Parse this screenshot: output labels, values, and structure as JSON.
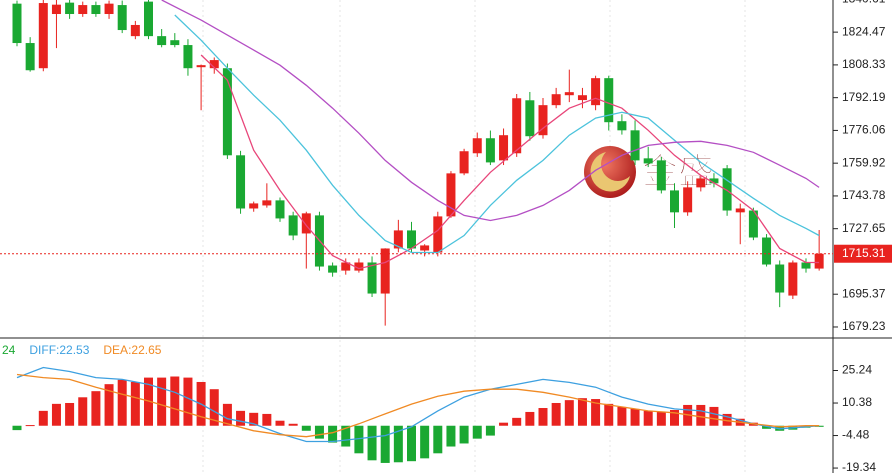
{
  "chart_data": [
    {
      "type": "candlestick",
      "up_color": "#e8231f",
      "down_color": "#1aa832",
      "ylim": [
        1673.8,
        1840.3
      ],
      "yticks": [
        1840.61,
        1824.47,
        1808.33,
        1792.19,
        1776.06,
        1759.92,
        1743.78,
        1727.65,
        1695.37,
        1679.23
      ],
      "last_price": 1715.31,
      "watermark": "金盛",
      "candles": [
        [
          1838.5,
          1840.0,
          1817.5,
          1819.1
        ],
        [
          1819.1,
          1822,
          1805.0,
          1805.7
        ],
        [
          1806.7,
          1840.3,
          1805.2,
          1838.8
        ],
        [
          1833.4,
          1840.3,
          1816.6,
          1838.0
        ],
        [
          1839,
          1840.3,
          1831,
          1833.4
        ],
        [
          1833.4,
          1839.5,
          1832,
          1837.8
        ],
        [
          1837.8,
          1839.5,
          1832,
          1833.4
        ],
        [
          1833.4,
          1840,
          1831,
          1838.5
        ],
        [
          1837.8,
          1840,
          1824,
          1825.5
        ],
        [
          1822.5,
          1830,
          1821,
          1828.0
        ],
        [
          1839.5,
          1840.3,
          1821,
          1822.5
        ],
        [
          1822.5,
          1826,
          1817,
          1818.1
        ],
        [
          1820.5,
          1824,
          1817,
          1818.1
        ],
        [
          1818.1,
          1821,
          1803,
          1806.7
        ],
        [
          1807.2,
          1808.5,
          1786.0,
          1808.2
        ],
        [
          1806.7,
          1812,
          1804,
          1810.7
        ],
        [
          1806.7,
          1809,
          1762,
          1763.8
        ],
        [
          1763.8,
          1766,
          1735,
          1737.6
        ],
        [
          1737.6,
          1741,
          1736,
          1740.1
        ],
        [
          1739.1,
          1750.0,
          1738,
          1741.6
        ],
        [
          1741.6,
          1743,
          1731,
          1732.7
        ],
        [
          1734.2,
          1736,
          1722,
          1724.3
        ],
        [
          1725.3,
          1736,
          1708.0,
          1735.2
        ],
        [
          1734.2,
          1736,
          1707,
          1709.0
        ],
        [
          1709.5,
          1711,
          1704,
          1706.0
        ],
        [
          1707.0,
          1713,
          1705,
          1711.0
        ],
        [
          1707.0,
          1713,
          1706,
          1711.0
        ],
        [
          1711.0,
          1714,
          1694,
          1695.7
        ],
        [
          1695.7,
          1718,
          1679.9,
          1717.9
        ],
        [
          1717.9,
          1732,
          1716,
          1726.8
        ],
        [
          1726.8,
          1731,
          1716,
          1717.9
        ],
        [
          1716.9,
          1720,
          1714,
          1719.4
        ],
        [
          1715.9,
          1736,
          1714,
          1733.7
        ],
        [
          1733.7,
          1756,
          1733,
          1754.9
        ],
        [
          1754.9,
          1767,
          1754,
          1765.8
        ],
        [
          1764.8,
          1775,
          1763,
          1772.2
        ],
        [
          1772.2,
          1776,
          1759,
          1760.3
        ],
        [
          1761.3,
          1777,
          1759,
          1773.7
        ],
        [
          1764.8,
          1794,
          1763,
          1791.9
        ],
        [
          1790.9,
          1795,
          1771,
          1773.2
        ],
        [
          1773.7,
          1792,
          1772,
          1788.5
        ],
        [
          1788.5,
          1797,
          1787,
          1793.9
        ],
        [
          1793.4,
          1806,
          1790,
          1794.9
        ],
        [
          1791,
          1797,
          1787,
          1793.4
        ],
        [
          1788.5,
          1803,
          1786,
          1801.8
        ],
        [
          1801.8,
          1803,
          1776,
          1780.1
        ],
        [
          1780.6,
          1784,
          1774,
          1776.1
        ],
        [
          1776.1,
          1781,
          1759,
          1761.3
        ],
        [
          1762.3,
          1768,
          1758,
          1759.8
        ],
        [
          1761.3,
          1763,
          1745,
          1746.5
        ],
        [
          1746.5,
          1750,
          1728,
          1735.7
        ],
        [
          1735.7,
          1751,
          1734,
          1748.0
        ],
        [
          1748.0,
          1754,
          1746,
          1752.4
        ],
        [
          1752.4,
          1755,
          1748,
          1750.0
        ],
        [
          1757.4,
          1759,
          1734,
          1736.6
        ],
        [
          1735.7,
          1740,
          1720,
          1737.6
        ],
        [
          1736.6,
          1738,
          1722,
          1723.3
        ],
        [
          1723.3,
          1725,
          1709,
          1710.0
        ],
        [
          1710.0,
          1712,
          1689,
          1696.2
        ],
        [
          1694.7,
          1712,
          1693,
          1711.0
        ],
        [
          1711.0,
          1713,
          1706,
          1708.0
        ],
        [
          1708.0,
          1727,
          1707,
          1715.31
        ]
      ],
      "series": [
        {
          "color": "#e8467a",
          "x": [
            14,
            16,
            18,
            20,
            22,
            24,
            26,
            28,
            30,
            32,
            34,
            36,
            38,
            40,
            42,
            44,
            46,
            48,
            50,
            52,
            54,
            56,
            58,
            60,
            61
          ],
          "values": [
            1813.2,
            1800.8,
            1766.3,
            1746.5,
            1729.2,
            1714.4,
            1708.0,
            1711.0,
            1717.9,
            1726.8,
            1741.6,
            1755.4,
            1766.3,
            1777.1,
            1787.0,
            1791.9,
            1787.0,
            1776.1,
            1763.8,
            1753.9,
            1746.5,
            1736.6,
            1717.9,
            1711.0,
            1711.0
          ]
        },
        {
          "color": "#4cc3dc",
          "x": [
            12,
            14,
            16,
            18,
            20,
            22,
            24,
            26,
            28,
            30,
            32,
            34,
            36,
            38,
            40,
            42,
            44,
            46,
            48,
            50,
            52,
            54,
            56,
            58,
            60,
            61
          ],
          "values": [
            1832.9,
            1820.5,
            1806.7,
            1793.4,
            1781.1,
            1766.3,
            1749.0,
            1734.2,
            1721.8,
            1715.9,
            1715.9,
            1724.3,
            1739.1,
            1751.5,
            1761.3,
            1773.7,
            1782.1,
            1785.0,
            1782.1,
            1771.2,
            1760.3,
            1751.5,
            1742.6,
            1734.2,
            1727.8,
            1724.3
          ]
        },
        {
          "color": "#b44fc4",
          "x": [
            11,
            14,
            16,
            18,
            20,
            22,
            24,
            26,
            28,
            30,
            32,
            34,
            36,
            38,
            40,
            42,
            44,
            46,
            48,
            50,
            52,
            54,
            56,
            58,
            60,
            61
          ],
          "values": [
            1840.3,
            1830.4,
            1823.0,
            1815.6,
            1808.2,
            1798.3,
            1787.0,
            1774.7,
            1761.3,
            1750.5,
            1741.6,
            1734.2,
            1731.7,
            1734.2,
            1739.1,
            1746.5,
            1756.4,
            1763.8,
            1768.7,
            1770.2,
            1770.7,
            1768.7,
            1765.3,
            1758.9,
            1752.4,
            1748.0
          ]
        }
      ]
    },
    {
      "type": "macd",
      "up_color": "#e8231f",
      "down_color": "#1aa832",
      "ylim": [
        -21.6,
        40.1
      ],
      "yticks": [
        25.24,
        10.38,
        -4.48,
        -19.34
      ],
      "legend": [
        {
          "label": "24",
          "color": "#1aa832"
        },
        {
          "label": "DIFF:22.53",
          "color": "#3da0e0"
        },
        {
          "label": "DEA:22.65",
          "color": "#f08a24"
        }
      ],
      "histogram": [
        -2,
        0.3,
        6.8,
        10,
        10.4,
        13,
        15.8,
        19,
        21,
        20,
        22,
        22,
        22.5,
        22,
        20,
        16.7,
        10,
        6.8,
        5.9,
        5.4,
        2.3,
        0.9,
        -2.3,
        -5.9,
        -7.7,
        -9.5,
        -12.6,
        -15.8,
        -17,
        -16.7,
        -16.2,
        -14.9,
        -12.6,
        -9.5,
        -8.1,
        -5.9,
        -4.5,
        1.4,
        3.6,
        6.3,
        8.1,
        10.4,
        11.7,
        12.6,
        12.2,
        10,
        8.6,
        7.7,
        6.8,
        6.3,
        7.2,
        9.5,
        9.5,
        8.6,
        5.4,
        3.2,
        1.4,
        -1.4,
        -2.3,
        -1.8,
        -0.9,
        -0.5
      ],
      "series": [
        {
          "color": "#3da0e0",
          "x": [
            0,
            2,
            4,
            6,
            8,
            10,
            12,
            14,
            16,
            18,
            20,
            22,
            24,
            26,
            28,
            30,
            32,
            34,
            36,
            38,
            40,
            42,
            44,
            46,
            48,
            50,
            52,
            54,
            56,
            58,
            60,
            61
          ],
          "values": [
            22,
            26.6,
            24.8,
            22,
            21.2,
            18.9,
            15.3,
            9.9,
            3.2,
            0.9,
            -3.6,
            -7.2,
            -7.2,
            -5.9,
            -4.5,
            -0.5,
            6.8,
            13.1,
            16.7,
            18.9,
            21.2,
            19.8,
            17.6,
            13.1,
            9.9,
            7.7,
            6.8,
            4.1,
            0.9,
            -1.4,
            -0.5,
            0
          ]
        },
        {
          "color": "#f08a24",
          "x": [
            0,
            2,
            4,
            6,
            8,
            10,
            12,
            14,
            16,
            18,
            20,
            22,
            24,
            26,
            28,
            30,
            32,
            34,
            36,
            38,
            40,
            42,
            44,
            46,
            48,
            50,
            52,
            54,
            56,
            58,
            60,
            61
          ],
          "values": [
            23.4,
            22,
            21.2,
            17.6,
            14.4,
            11.3,
            7.7,
            4.1,
            0.9,
            -2.3,
            -4.1,
            -5,
            -3.2,
            0.9,
            5.4,
            9.9,
            13.5,
            15.8,
            16.7,
            16.7,
            15.3,
            13.1,
            10.4,
            8.6,
            6.8,
            5.9,
            4.1,
            2.3,
            0.9,
            -0.5,
            0,
            0
          ]
        }
      ]
    }
  ]
}
